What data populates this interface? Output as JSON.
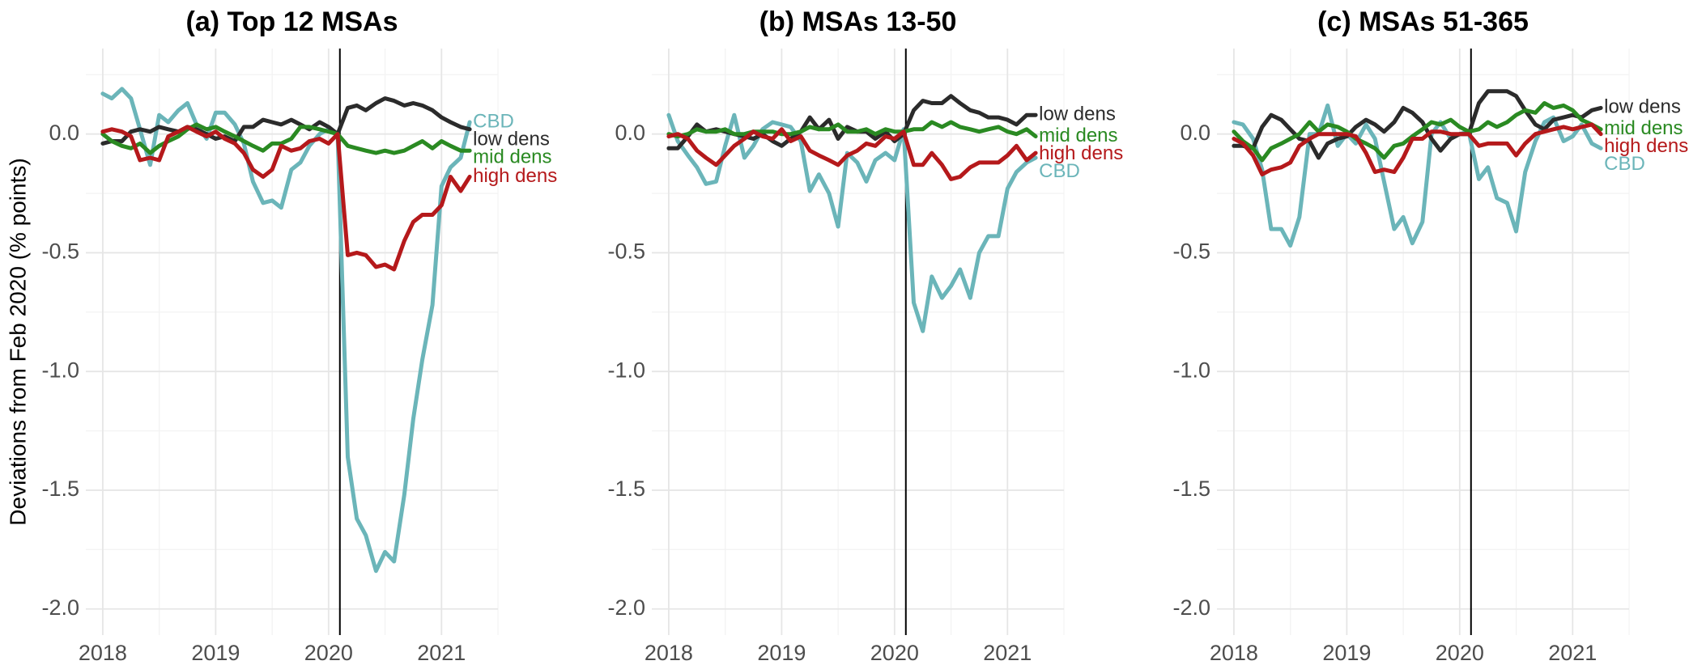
{
  "chart_data": [
    {
      "type": "line",
      "title": "(a) Top 12 MSAs",
      "ylabel": "Deviations from Feb 2020 (% points)",
      "x": [
        2018,
        2018.08,
        2018.17,
        2018.25,
        2018.33,
        2018.42,
        2018.5,
        2018.58,
        2018.67,
        2018.75,
        2018.83,
        2018.92,
        2019,
        2019.08,
        2019.17,
        2019.25,
        2019.33,
        2019.42,
        2019.5,
        2019.58,
        2019.67,
        2019.75,
        2019.83,
        2019.92,
        2020,
        2020.08,
        2020.17,
        2020.25,
        2020.33,
        2020.42,
        2020.5,
        2020.58,
        2020.67,
        2020.75,
        2020.83,
        2020.92,
        2021,
        2021.08,
        2021.17,
        2021.25
      ],
      "xlim": [
        2017.85,
        2021.5
      ],
      "xticks": [
        2018,
        2019,
        2020,
        2021
      ],
      "ylim": [
        -2.11,
        0.36
      ],
      "yticks": [
        {
          "value": 0,
          "label": "0.0"
        },
        {
          "value": -0.5,
          "label": "-0.5"
        },
        {
          "value": -1,
          "label": "-1.0"
        },
        {
          "value": -1.5,
          "label": "-1.5"
        },
        {
          "value": -2,
          "label": "-2.0"
        }
      ],
      "grid": true,
      "vline": 2020.1,
      "series": [
        {
          "name": "CBD",
          "color": "#6bb5b9",
          "values": [
            0.17,
            0.15,
            0.19,
            0.15,
            0.02,
            -0.13,
            0.08,
            0.05,
            0.1,
            0.13,
            0.04,
            -0.02,
            0.09,
            0.09,
            0.04,
            -0.04,
            -0.2,
            -0.29,
            -0.28,
            -0.31,
            -0.15,
            -0.12,
            -0.05,
            0.0,
            0.02,
            0.0,
            -1.36,
            -1.62,
            -1.69,
            -1.84,
            -1.76,
            -1.8,
            -1.52,
            -1.2,
            -0.95,
            -0.72,
            -0.22,
            -0.14,
            -0.1,
            0.05
          ]
        },
        {
          "name": "low dens",
          "color": "#2b2b2b",
          "values": [
            -0.04,
            -0.03,
            -0.03,
            0.01,
            0.02,
            0.01,
            0.03,
            0.02,
            0.01,
            0.03,
            0.02,
            0.0,
            -0.02,
            -0.01,
            -0.03,
            0.03,
            0.03,
            0.06,
            0.05,
            0.04,
            0.06,
            0.04,
            0.02,
            0.05,
            0.03,
            0.0,
            0.11,
            0.12,
            0.1,
            0.13,
            0.15,
            0.14,
            0.12,
            0.13,
            0.12,
            0.1,
            0.07,
            0.05,
            0.03,
            0.02
          ]
        },
        {
          "name": "mid dens",
          "color": "#2a8a22",
          "values": [
            0.0,
            -0.03,
            -0.05,
            -0.06,
            -0.04,
            -0.08,
            -0.05,
            -0.03,
            -0.01,
            0.02,
            0.04,
            0.02,
            0.03,
            0.01,
            -0.01,
            -0.03,
            -0.05,
            -0.07,
            -0.04,
            -0.04,
            -0.02,
            0.03,
            0.03,
            0.02,
            0.01,
            0.0,
            -0.05,
            -0.06,
            -0.07,
            -0.08,
            -0.07,
            -0.08,
            -0.07,
            -0.05,
            -0.03,
            -0.06,
            -0.03,
            -0.05,
            -0.07,
            -0.07
          ]
        },
        {
          "name": "high dens",
          "color": "#b5191b",
          "values": [
            0.01,
            0.02,
            0.01,
            -0.01,
            -0.11,
            -0.1,
            -0.11,
            -0.01,
            0.01,
            0.03,
            0.01,
            -0.01,
            0.01,
            -0.02,
            -0.04,
            -0.08,
            -0.15,
            -0.18,
            -0.15,
            -0.05,
            -0.07,
            -0.06,
            -0.03,
            -0.02,
            -0.04,
            0.0,
            -0.51,
            -0.5,
            -0.51,
            -0.56,
            -0.55,
            -0.57,
            -0.45,
            -0.37,
            -0.34,
            -0.34,
            -0.3,
            -0.18,
            -0.24,
            -0.18
          ]
        }
      ]
    },
    {
      "type": "line",
      "title": "(b) MSAs 13-50",
      "x": [
        2018,
        2018.08,
        2018.17,
        2018.25,
        2018.33,
        2018.42,
        2018.5,
        2018.58,
        2018.67,
        2018.75,
        2018.83,
        2018.92,
        2019,
        2019.08,
        2019.17,
        2019.25,
        2019.33,
        2019.42,
        2019.5,
        2019.58,
        2019.67,
        2019.75,
        2019.83,
        2019.92,
        2020,
        2020.08,
        2020.17,
        2020.25,
        2020.33,
        2020.42,
        2020.5,
        2020.58,
        2020.67,
        2020.75,
        2020.83,
        2020.92,
        2021,
        2021.08,
        2021.17,
        2021.25
      ],
      "xlim": [
        2017.85,
        2021.5
      ],
      "xticks": [
        2018,
        2019,
        2020,
        2021
      ],
      "ylim": [
        -2.11,
        0.36
      ],
      "yticks": [
        {
          "value": 0,
          "label": "0.0"
        },
        {
          "value": -0.5,
          "label": "-0.5"
        },
        {
          "value": -1,
          "label": "-1.0"
        },
        {
          "value": -1.5,
          "label": "-1.5"
        },
        {
          "value": -2,
          "label": "-2.0"
        }
      ],
      "grid": true,
      "vline": 2020.1,
      "series": [
        {
          "name": "CBD",
          "color": "#6bb5b9",
          "values": [
            0.08,
            -0.03,
            -0.09,
            -0.14,
            -0.21,
            -0.2,
            -0.05,
            0.08,
            -0.1,
            -0.05,
            0.02,
            0.05,
            0.04,
            0.03,
            -0.03,
            -0.24,
            -0.17,
            -0.25,
            -0.39,
            -0.08,
            -0.12,
            -0.2,
            -0.11,
            -0.08,
            -0.11,
            0.02,
            -0.71,
            -0.83,
            -0.6,
            -0.69,
            -0.64,
            -0.57,
            -0.69,
            -0.5,
            -0.43,
            -0.43,
            -0.23,
            -0.16,
            -0.12,
            -0.1
          ]
        },
        {
          "name": "low dens",
          "color": "#2b2b2b",
          "values": [
            -0.06,
            -0.06,
            -0.01,
            0.04,
            0.01,
            0.02,
            0.01,
            0.0,
            -0.01,
            -0.02,
            0.0,
            -0.03,
            -0.05,
            -0.02,
            0.01,
            0.07,
            0.02,
            0.06,
            -0.02,
            0.03,
            0.01,
            0.01,
            -0.02,
            0.01,
            -0.03,
            0.0,
            0.1,
            0.14,
            0.13,
            0.13,
            0.16,
            0.13,
            0.1,
            0.09,
            0.07,
            0.07,
            0.06,
            0.04,
            0.08,
            0.08
          ]
        },
        {
          "name": "mid dens",
          "color": "#2a8a22",
          "values": [
            0.0,
            -0.01,
            0.0,
            0.02,
            0.01,
            0.01,
            0.02,
            0.0,
            0.0,
            0.01,
            0.01,
            0.01,
            0.0,
            0.0,
            0.01,
            0.03,
            0.02,
            0.02,
            0.04,
            0.01,
            0.01,
            0.02,
            0.0,
            0.02,
            0.01,
            0.01,
            0.02,
            0.02,
            0.05,
            0.03,
            0.05,
            0.03,
            0.02,
            0.01,
            0.02,
            0.03,
            0.01,
            0.0,
            0.02,
            -0.01
          ]
        },
        {
          "name": "high dens",
          "color": "#b5191b",
          "values": [
            -0.01,
            0.0,
            -0.02,
            -0.07,
            -0.1,
            -0.13,
            -0.09,
            -0.05,
            -0.02,
            0.01,
            -0.01,
            -0.02,
            0.02,
            -0.03,
            -0.01,
            -0.07,
            -0.09,
            -0.11,
            -0.13,
            -0.09,
            -0.07,
            -0.04,
            -0.05,
            -0.01,
            -0.02,
            0.01,
            -0.13,
            -0.13,
            -0.08,
            -0.13,
            -0.19,
            -0.18,
            -0.14,
            -0.12,
            -0.12,
            -0.12,
            -0.09,
            -0.05,
            -0.11,
            -0.08
          ]
        }
      ]
    },
    {
      "type": "line",
      "title": "(c) MSAs 51-365",
      "x": [
        2018,
        2018.08,
        2018.17,
        2018.25,
        2018.33,
        2018.42,
        2018.5,
        2018.58,
        2018.67,
        2018.75,
        2018.83,
        2018.92,
        2019,
        2019.08,
        2019.17,
        2019.25,
        2019.33,
        2019.42,
        2019.5,
        2019.58,
        2019.67,
        2019.75,
        2019.83,
        2019.92,
        2020,
        2020.08,
        2020.17,
        2020.25,
        2020.33,
        2020.42,
        2020.5,
        2020.58,
        2020.67,
        2020.75,
        2020.83,
        2020.92,
        2021,
        2021.08,
        2021.17,
        2021.25
      ],
      "xlim": [
        2017.85,
        2021.5
      ],
      "xticks": [
        2018,
        2019,
        2020,
        2021
      ],
      "ylim": [
        -2.11,
        0.36
      ],
      "yticks": [
        {
          "value": 0,
          "label": "0.0"
        },
        {
          "value": -0.5,
          "label": "-0.5"
        },
        {
          "value": -1,
          "label": "-1.0"
        },
        {
          "value": -1.5,
          "label": "-1.5"
        },
        {
          "value": -2,
          "label": "-2.0"
        }
      ],
      "grid": true,
      "vline": 2020.1,
      "series": [
        {
          "name": "CBD",
          "color": "#6bb5b9",
          "values": [
            0.05,
            0.04,
            -0.02,
            -0.15,
            -0.4,
            -0.4,
            -0.47,
            -0.35,
            0.0,
            0.0,
            0.12,
            -0.05,
            0.0,
            -0.04,
            0.04,
            -0.02,
            -0.2,
            -0.4,
            -0.35,
            -0.46,
            -0.37,
            0.0,
            0.05,
            -0.02,
            0.0,
            0.01,
            -0.19,
            -0.14,
            -0.27,
            -0.29,
            -0.41,
            -0.16,
            -0.03,
            0.05,
            0.07,
            -0.03,
            -0.01,
            0.04,
            -0.04,
            -0.06
          ]
        },
        {
          "name": "low dens",
          "color": "#2b2b2b",
          "values": [
            -0.05,
            -0.05,
            -0.06,
            0.03,
            0.08,
            0.06,
            0.02,
            -0.02,
            -0.03,
            -0.1,
            -0.04,
            -0.02,
            -0.01,
            0.03,
            0.06,
            0.04,
            0.01,
            0.05,
            0.11,
            0.09,
            0.05,
            -0.02,
            -0.07,
            -0.02,
            0.0,
            0.0,
            0.13,
            0.18,
            0.18,
            0.18,
            0.16,
            0.1,
            0.04,
            0.02,
            0.06,
            0.07,
            0.08,
            0.07,
            0.1,
            0.11
          ]
        },
        {
          "name": "mid dens",
          "color": "#2a8a22",
          "values": [
            0.01,
            -0.03,
            -0.06,
            -0.11,
            -0.06,
            -0.04,
            -0.02,
            0.0,
            0.05,
            0.01,
            0.04,
            0.03,
            0.01,
            -0.02,
            -0.04,
            -0.06,
            -0.1,
            -0.05,
            -0.04,
            -0.01,
            0.02,
            0.05,
            0.04,
            0.06,
            0.03,
            0.01,
            0.02,
            0.05,
            0.03,
            0.05,
            0.08,
            0.1,
            0.09,
            0.13,
            0.11,
            0.12,
            0.1,
            0.06,
            0.04,
            0.02
          ]
        },
        {
          "name": "high dens",
          "color": "#b5191b",
          "values": [
            -0.02,
            -0.04,
            -0.09,
            -0.17,
            -0.15,
            -0.14,
            -0.12,
            -0.05,
            -0.02,
            0.0,
            0.0,
            0.0,
            0.0,
            -0.01,
            -0.08,
            -0.16,
            -0.15,
            -0.16,
            -0.1,
            -0.02,
            -0.02,
            0.01,
            0.01,
            0.0,
            0.0,
            0.0,
            -0.05,
            -0.04,
            -0.04,
            -0.04,
            -0.09,
            -0.04,
            0.0,
            0.01,
            0.02,
            0.03,
            0.02,
            0.03,
            0.04,
            0.0
          ]
        }
      ]
    }
  ]
}
